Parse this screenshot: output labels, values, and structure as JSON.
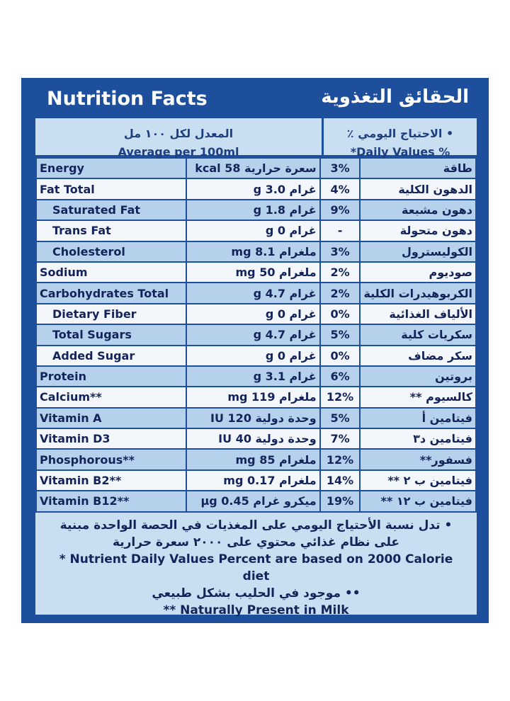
{
  "header": {
    "title_en": "Nutrition Facts",
    "title_ar": "الحقائق التغذوية"
  },
  "column_headers": {
    "amount_ar": "المعدل لكل ١٠٠ مل",
    "amount_en": "Average per 100ml",
    "dv_ar": "• الاحتياج اليومي ٪",
    "dv_en": "*Daily Values %"
  },
  "rows": [
    {
      "name_en": "Energy",
      "amount": "سعرة حرارية 58 kcal",
      "daily_value": "3%",
      "name_ar": "طاقة",
      "indent": false
    },
    {
      "name_en": "Fat Total",
      "amount": "غرام 3.0 g",
      "daily_value": "4%",
      "name_ar": "الدهون الكلية",
      "indent": false
    },
    {
      "name_en": "Saturated Fat",
      "amount": "غرام 1.8 g",
      "daily_value": "9%",
      "name_ar": "دهون مشبعة",
      "indent": true
    },
    {
      "name_en": "Trans Fat",
      "amount": "غرام 0 g",
      "daily_value": "-",
      "name_ar": "دهون متحولة",
      "indent": true
    },
    {
      "name_en": "Cholesterol",
      "amount": "ملغرام 8.1 mg",
      "daily_value": "3%",
      "name_ar": "الكوليسترول",
      "indent": true
    },
    {
      "name_en": "Sodium",
      "amount": "ملغرام 50 mg",
      "daily_value": "2%",
      "name_ar": "صوديوم",
      "indent": false
    },
    {
      "name_en": "Carbohydrates Total",
      "amount": "غرام 4.7 g",
      "daily_value": "2%",
      "name_ar": "الكربوهيدرات الكلية",
      "indent": false
    },
    {
      "name_en": "Dietary Fiber",
      "amount": "غرام 0 g",
      "daily_value": "0%",
      "name_ar": "الألياف الغذائية",
      "indent": true
    },
    {
      "name_en": "Total Sugars",
      "amount": "غرام 4.7 g",
      "daily_value": "5%",
      "name_ar": "سكريات كلية",
      "indent": true
    },
    {
      "name_en": "Added Sugar",
      "amount": "غرام 0 g",
      "daily_value": "0%",
      "name_ar": "سكر مضاف",
      "indent": true
    },
    {
      "name_en": "Protein",
      "amount": "غرام 3.1 g",
      "daily_value": "6%",
      "name_ar": "بروتين",
      "indent": false
    },
    {
      "name_en": "Calcium**",
      "amount": "ملغرام 119 mg",
      "daily_value": "12%",
      "name_ar": "كالسيوم **",
      "indent": false
    },
    {
      "name_en": "Vitamin A",
      "amount": "وحدة دولية 120 IU",
      "daily_value": "5%",
      "name_ar": "فيتامين أ",
      "indent": false
    },
    {
      "name_en": "Vitamin D3",
      "amount": "وحدة دولية 40 IU",
      "daily_value": "7%",
      "name_ar": "فيتامين د٣",
      "indent": false
    },
    {
      "name_en": "Phosphorous**",
      "amount": "ملغرام 85 mg",
      "daily_value": "12%",
      "name_ar": "فسفور**",
      "indent": false
    },
    {
      "name_en": "Vitamin B2**",
      "amount": "ملغرام 0.17 mg",
      "daily_value": "14%",
      "name_ar": "فيتامين ب ٢ **",
      "indent": false
    },
    {
      "name_en": "Vitamin B12**",
      "amount": "ميكرو غرام 0.45 µg",
      "daily_value": "19%",
      "name_ar": "فيتامين ب ١٢ **",
      "indent": false
    }
  ],
  "notes": {
    "dv_ar": "• تدل نسبة الأحتياج اليومي على المغذيات في الحصة الواحدة مبنية على نظام غذائي محتوي على ٢٠٠٠ سعرة حرارية",
    "dv_en": "* Nutrient Daily Values Percent are based on 2000 Calorie diet",
    "natural_ar": "•• موجود في الحليب بشكل طبيعي",
    "natural_en": "** Naturally Present in Milk"
  }
}
